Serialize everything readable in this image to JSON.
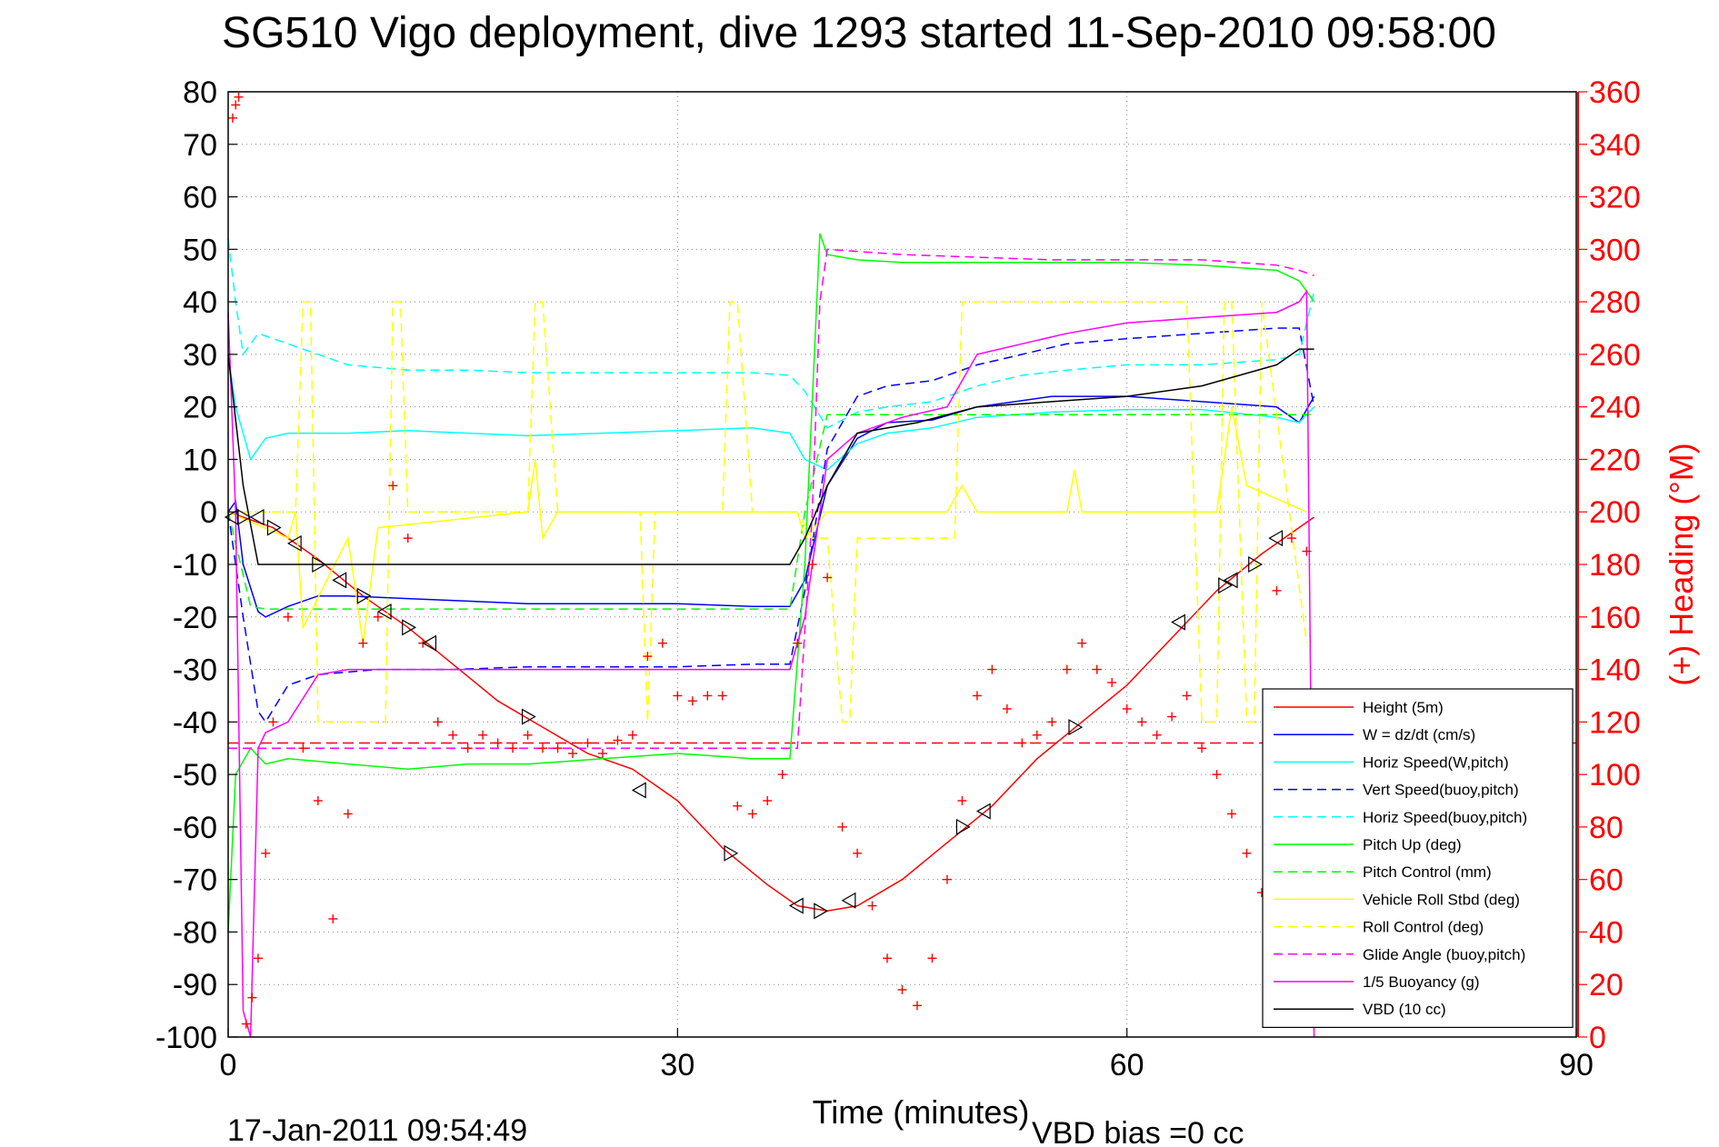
{
  "title": "SG510 Vigo deployment, dive 1293 started 11-Sep-2010 09:58:00",
  "footer": {
    "timestamp": "17-Jan-2011 09:54:49",
    "vbd_bias": "VBD bias =0 cc"
  },
  "colors": {
    "height": "#ff0000",
    "w": "#0000ff",
    "horiz_speed": "#00ffff",
    "pitch": "#00ff00",
    "roll": "#ffff00",
    "glide": "#ff00ff",
    "buoyancy": "#ff00ff",
    "vbd": "#000000"
  },
  "chart_data": {
    "type": "line",
    "title": "SG510 Vigo deployment, dive 1293 started 11-Sep-2010 09:58:00",
    "xlabel": "Time (minutes)",
    "ylabel": "",
    "y2label": "(+) Heading (°M)",
    "xlim": [
      0,
      90
    ],
    "ylim": [
      -100,
      80
    ],
    "y2lim": [
      0,
      360
    ],
    "xticks": [
      0,
      30,
      60,
      90
    ],
    "yticks": [
      80,
      70,
      60,
      50,
      40,
      30,
      20,
      10,
      0,
      -10,
      -20,
      -30,
      -40,
      -50,
      -60,
      -70,
      -80,
      -90,
      -100
    ],
    "y2ticks": [
      360,
      340,
      320,
      300,
      280,
      260,
      240,
      220,
      200,
      180,
      160,
      140,
      120,
      100,
      80,
      60,
      40,
      20,
      0
    ],
    "grid": true,
    "legend_position": "bottom-right",
    "series": [
      {
        "name": "Height (5m)",
        "color": "#ff0000",
        "dash": "solid",
        "x": [
          0,
          1,
          3,
          6,
          9,
          12,
          15,
          18,
          21,
          24,
          27,
          30,
          33,
          36,
          38,
          40,
          42,
          45,
          48,
          51,
          54,
          57,
          60,
          63,
          66,
          69,
          71,
          72.5
        ],
        "y": [
          0,
          -1,
          -3,
          -9,
          -16,
          -22,
          -29,
          -36,
          -41,
          -46,
          -49,
          -55,
          -64,
          -71,
          -75,
          -76,
          -75,
          -70,
          -63,
          -56,
          -47,
          -40,
          -33,
          -24,
          -15,
          -8,
          -4,
          -1
        ]
      },
      {
        "name": "W = dz/dt (cm/s)",
        "color": "#0000ff",
        "dash": "solid",
        "x": [
          0,
          0.5,
          1,
          2,
          2.5,
          4,
          6,
          8,
          12,
          16,
          20,
          25,
          30,
          35,
          37.5,
          38.5,
          40,
          42,
          44,
          47,
          50,
          55,
          60,
          65,
          70,
          71.5,
          72.5
        ],
        "y": [
          0,
          2,
          -10,
          -19,
          -20,
          -18,
          -16,
          -16,
          -16.5,
          -17,
          -17.5,
          -17.5,
          -17.5,
          -18,
          -18,
          -13,
          5,
          14,
          17,
          17.5,
          20,
          22,
          22,
          21,
          20,
          17,
          22
        ]
      },
      {
        "name": "Horiz Speed(W,pitch)",
        "color": "#00ffff",
        "dash": "solid",
        "x": [
          0,
          0.5,
          1.5,
          2.5,
          4,
          8,
          12,
          16,
          20,
          25,
          30,
          35,
          37.5,
          38.5,
          40,
          42,
          44,
          47,
          50,
          55,
          60,
          65,
          70,
          71.5,
          72.5
        ],
        "y": [
          30,
          20,
          10,
          14,
          15,
          15,
          15.5,
          15,
          14.5,
          15,
          15.5,
          16,
          15,
          10,
          8,
          13,
          15,
          16,
          18,
          19,
          19.5,
          19.5,
          18,
          17,
          20
        ]
      },
      {
        "name": "Vert Speed(buoy,pitch)",
        "color": "#0000ff",
        "dash": "dashed",
        "x": [
          0,
          1,
          2,
          2.5,
          4,
          6,
          10,
          15,
          20,
          25,
          30,
          35,
          37.5,
          38.5,
          40,
          42,
          44,
          47,
          50,
          53,
          56,
          60,
          65,
          70,
          71.5,
          72.5
        ],
        "y": [
          0,
          -20,
          -38,
          -40,
          -33,
          -31,
          -30,
          -30,
          -29.5,
          -29.5,
          -29.5,
          -29,
          -29,
          -15,
          12,
          22,
          24,
          25,
          28,
          30,
          32,
          33,
          34,
          35,
          35,
          20
        ]
      },
      {
        "name": "Horiz Speed(buoy,pitch)",
        "color": "#00ffff",
        "dash": "dashed",
        "x": [
          0,
          0.5,
          1,
          2,
          4,
          8,
          12,
          16,
          20,
          25,
          30,
          35,
          37.5,
          38.5,
          40,
          42,
          44,
          47,
          50,
          53,
          56,
          60,
          65,
          70,
          71.5,
          72.5
        ],
        "y": [
          52,
          40,
          30,
          34,
          32,
          28,
          27,
          27,
          26.5,
          26.5,
          26.5,
          26.5,
          26,
          23,
          16,
          19,
          20,
          21,
          24,
          26,
          27,
          28,
          28,
          29,
          30,
          42
        ]
      },
      {
        "name": "Pitch Up (deg)",
        "color": "#00ff00",
        "dash": "solid",
        "x": [
          0,
          0.5,
          1.5,
          2.5,
          4,
          8,
          12,
          16,
          20,
          25,
          30,
          35,
          37.5,
          38.5,
          39.5,
          40,
          42,
          45,
          50,
          55,
          60,
          65,
          70,
          71.5,
          72.5
        ],
        "y": [
          -80,
          -50,
          -45,
          -48,
          -47,
          -48,
          -49,
          -48,
          -48,
          -47,
          -46,
          -47,
          -47,
          -10,
          53,
          49,
          48,
          47.5,
          47.5,
          47.5,
          47.5,
          47,
          46,
          44,
          40
        ]
      },
      {
        "name": "Pitch Control (mm)",
        "color": "#00ff00",
        "dash": "dashed",
        "x": [
          0,
          1.5,
          2.5,
          10,
          20,
          30,
          37.5,
          38.5,
          40,
          50,
          60,
          70,
          72.5
        ],
        "y": [
          0,
          -18,
          -18.5,
          -18.5,
          -18.5,
          -18.5,
          -18.5,
          0,
          18.5,
          18.5,
          18.5,
          18.5,
          18.5
        ]
      },
      {
        "name": "Vehicle Roll Stbd (deg)",
        "color": "#ffff00",
        "dash": "solid",
        "x": [
          0,
          4,
          4.5,
          5,
          8,
          9,
          10,
          20,
          20.5,
          21,
          22,
          30,
          38,
          38.5,
          40,
          48,
          49,
          50,
          56,
          56.5,
          57,
          66,
          67,
          68,
          72
        ],
        "y": [
          0,
          -5,
          0,
          -22,
          -5,
          -25,
          -3,
          0,
          10,
          -5,
          0,
          0,
          0,
          -5,
          0,
          0,
          5,
          0,
          0,
          8,
          0,
          0,
          20,
          5,
          0
        ]
      },
      {
        "name": "Roll Control (deg)",
        "color": "#ffff00",
        "dash": "dashed",
        "x": [
          0,
          4.5,
          5,
          5.5,
          6,
          10.5,
          11,
          11.5,
          12,
          20,
          20.5,
          21,
          22,
          27.5,
          28,
          28.5,
          33,
          33.5,
          34,
          35,
          38,
          39,
          40,
          41,
          41.5,
          42,
          48.5,
          49,
          50,
          64,
          65,
          66,
          66.5,
          67,
          68,
          68.5,
          69,
          72
        ],
        "y": [
          0,
          0,
          40,
          40,
          -40,
          -40,
          40,
          40,
          0,
          0,
          40,
          40,
          0,
          0,
          -40,
          0,
          0,
          40,
          40,
          0,
          0,
          -5,
          -5,
          -40,
          -40,
          -5,
          -5,
          40,
          40,
          40,
          -40,
          -40,
          40,
          40,
          -40,
          -40,
          40,
          -25
        ]
      },
      {
        "name": "Glide Angle (buoy,pitch)",
        "color": "#ff00ff",
        "dash": "dashed",
        "x": [
          0,
          1,
          2,
          4,
          8,
          12,
          16,
          20,
          25,
          30,
          35,
          38,
          39,
          39.5,
          40,
          45,
          50,
          55,
          60,
          65,
          70,
          71.5,
          72.5
        ],
        "y": [
          -45,
          -45,
          -45,
          -45,
          -45,
          -45,
          -45,
          -45,
          -45,
          -45,
          -45,
          -45,
          0,
          40,
          50,
          49,
          48.5,
          48,
          48,
          48,
          47,
          46,
          45
        ]
      },
      {
        "name": "1/5 Buoyancy (g)",
        "color": "#ff00ff",
        "dash": "solid",
        "x": [
          0,
          0.5,
          1,
          1.5,
          2,
          2.5,
          4,
          6,
          8,
          10,
          15,
          20,
          25,
          30,
          35,
          37.5,
          38.5,
          40,
          42,
          45,
          48,
          50,
          53,
          56,
          60,
          65,
          70,
          71.5,
          72,
          72.5
        ],
        "y": [
          38,
          0,
          -95,
          -100,
          -45,
          -42,
          -40,
          -31,
          -30,
          -30,
          -30,
          -30,
          -30,
          -30,
          -30,
          -30,
          -20,
          10,
          15,
          18,
          20,
          30,
          32,
          34,
          36,
          37,
          38,
          40,
          42,
          -100
        ]
      },
      {
        "name": "VBD (10 cc)",
        "color": "#000000",
        "dash": "solid",
        "x": [
          0,
          1,
          2,
          3,
          10,
          20,
          30,
          37.5,
          38.5,
          40,
          42,
          46,
          50,
          55,
          60,
          65,
          70,
          71.5,
          72.5
        ],
        "y": [
          30,
          5,
          -10,
          -10,
          -10,
          -10,
          -10,
          -10,
          -5,
          5,
          15,
          17,
          20,
          21,
          22,
          24,
          28,
          31,
          31
        ]
      },
      {
        "name": "Heading",
        "axis": "right",
        "style": "markers",
        "marker": "+",
        "color": "#ff0000",
        "x": [
          0.3,
          0.5,
          0.7,
          1.2,
          1.6,
          2,
          2.5,
          3,
          4,
          5,
          6,
          7,
          8,
          9,
          10,
          11,
          12,
          13,
          14,
          15,
          16,
          17,
          18,
          19,
          20,
          21,
          22,
          23,
          24,
          25,
          26,
          27,
          28,
          29,
          30,
          31,
          32,
          33,
          34,
          35,
          36,
          37,
          38,
          39,
          40,
          41,
          42,
          43,
          44,
          45,
          46,
          47,
          48,
          49,
          50,
          51,
          52,
          53,
          54,
          55,
          56,
          57,
          58,
          59,
          60,
          61,
          62,
          63,
          64,
          65,
          66,
          67,
          68,
          69,
          70,
          71,
          72
        ],
        "y": [
          350,
          355,
          358,
          5,
          15,
          30,
          70,
          120,
          160,
          110,
          90,
          45,
          85,
          150,
          160,
          210,
          190,
          150,
          120,
          115,
          110,
          115,
          112,
          110,
          115,
          110,
          110,
          108,
          112,
          108,
          113,
          115,
          145,
          150,
          130,
          128,
          130,
          130,
          88,
          85,
          90,
          100,
          150,
          180,
          175,
          80,
          70,
          50,
          30,
          18,
          12,
          30,
          60,
          90,
          130,
          140,
          125,
          112,
          115,
          120,
          140,
          150,
          140,
          135,
          125,
          120,
          115,
          122,
          130,
          110,
          100,
          85,
          70,
          55,
          170,
          190,
          185
        ]
      },
      {
        "name": "Glider markers",
        "style": "triangles",
        "color": "#000000",
        "x": [
          0.3,
          1,
          2,
          3,
          4.5,
          6,
          7.5,
          9,
          10.5,
          12,
          13.5,
          20,
          27.5,
          33.5,
          38,
          39.5,
          41.5,
          49,
          50.5,
          56.5,
          63.5,
          66.5,
          67,
          68.5,
          70
        ],
        "y": [
          -1,
          -1,
          -1,
          -3,
          -6,
          -10,
          -13,
          -16,
          -19,
          -22,
          -25,
          -39,
          -53,
          -65,
          -75,
          -76,
          -74,
          -60,
          -57,
          -41,
          -21,
          -14,
          -13,
          -10,
          -5
        ]
      }
    ]
  },
  "legend": {
    "items": [
      {
        "label": "Height (5m)",
        "color": "#ff0000",
        "dash": "solid"
      },
      {
        "label": "W = dz/dt (cm/s)",
        "color": "#0000ff",
        "dash": "solid"
      },
      {
        "label": "Horiz Speed(W,pitch)",
        "color": "#00ffff",
        "dash": "solid"
      },
      {
        "label": "Vert Speed(buoy,pitch)",
        "color": "#0000ff",
        "dash": "dashed"
      },
      {
        "label": "Horiz Speed(buoy,pitch)",
        "color": "#00ffff",
        "dash": "dashed"
      },
      {
        "label": "Pitch Up (deg)",
        "color": "#00ff00",
        "dash": "solid"
      },
      {
        "label": "Pitch Control (mm)",
        "color": "#00ff00",
        "dash": "dashed"
      },
      {
        "label": "Vehicle Roll Stbd (deg)",
        "color": "#ffff00",
        "dash": "solid"
      },
      {
        "label": "Roll Control (deg)",
        "color": "#ffff00",
        "dash": "dashed"
      },
      {
        "label": "Glide Angle (buoy,pitch)",
        "color": "#ff00ff",
        "dash": "dashed"
      },
      {
        "label": "1/5 Buoyancy (g)",
        "color": "#ff00ff",
        "dash": "solid"
      },
      {
        "label": "VBD (10 cc)",
        "color": "#000000",
        "dash": "solid"
      }
    ]
  },
  "reference_line": {
    "label": "",
    "y": -44,
    "color": "#ff0000",
    "dash": "dashed"
  }
}
